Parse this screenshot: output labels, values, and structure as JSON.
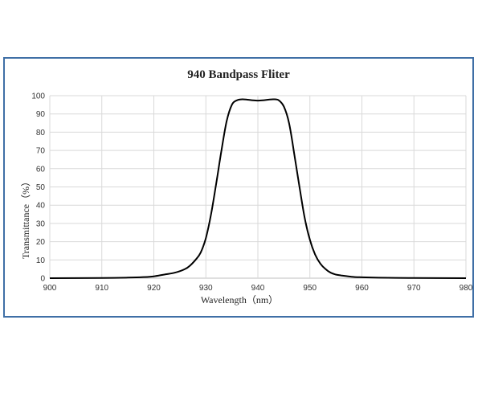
{
  "chart_data": {
    "type": "line",
    "title": "940 Bandpass Fliter",
    "xlabel": "Wavelength（nm）",
    "ylabel": "Transmittance（%）",
    "xlim": [
      900,
      980
    ],
    "ylim": [
      0,
      100
    ],
    "xticks": [
      900,
      910,
      920,
      930,
      940,
      950,
      960,
      970,
      980
    ],
    "yticks": [
      0,
      10,
      20,
      30,
      40,
      50,
      60,
      70,
      80,
      90,
      100
    ],
    "grid": true,
    "colors": {
      "line": "#000000",
      "grid": "#d9d9d9",
      "frame": "#3f6fa6"
    },
    "series": [
      {
        "x": [
          900,
          910,
          915,
          918,
          920,
          922,
          924,
          926,
          927,
          928,
          929,
          930,
          931,
          932,
          933,
          934,
          935,
          936,
          937,
          938,
          939,
          940,
          941,
          942,
          943,
          944,
          945,
          946,
          947,
          948,
          949,
          950,
          951,
          952,
          953,
          954,
          955,
          956,
          958,
          960,
          965,
          970,
          980
        ],
        "y": [
          0,
          0.1,
          0.3,
          0.6,
          1,
          2,
          3,
          5,
          7,
          10,
          14,
          22,
          35,
          52,
          70,
          86,
          95,
          97.5,
          98,
          97.8,
          97.5,
          97.3,
          97.5,
          97.8,
          98,
          97.5,
          94,
          85,
          68,
          50,
          33,
          21,
          13,
          8,
          5,
          3,
          2,
          1.5,
          0.8,
          0.5,
          0.2,
          0.1,
          0
        ]
      }
    ]
  }
}
